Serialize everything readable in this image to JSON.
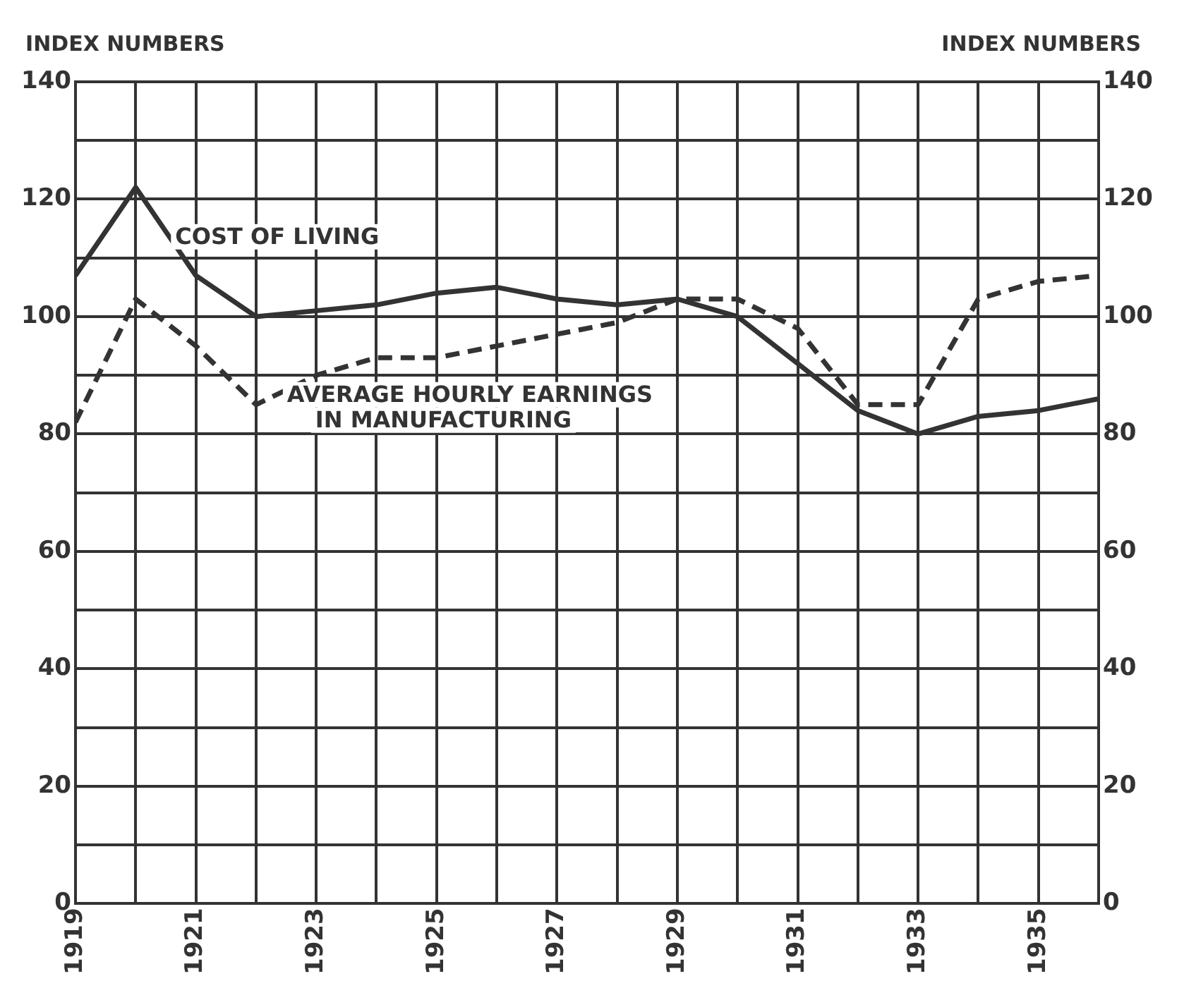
{
  "chart_data": {
    "type": "line",
    "ylabel": "INDEX NUMBERS",
    "y2label": "INDEX NUMBERS",
    "x": [
      1919,
      1920,
      1921,
      1922,
      1923,
      1924,
      1925,
      1926,
      1927,
      1928,
      1929,
      1930,
      1931,
      1932,
      1933,
      1934,
      1935,
      1936
    ],
    "series": [
      {
        "name": "COST OF LIVING",
        "color": "#333333",
        "line_style": "solid",
        "values": [
          107,
          122,
          107,
          100,
          101,
          102,
          104,
          105,
          103,
          102,
          103,
          100,
          92,
          84,
          80,
          83,
          84,
          86
        ]
      },
      {
        "name": "AVERAGE HOURLY EARNINGS IN MANUFACTURING",
        "color": "#333333",
        "line_style": "dashed",
        "values": [
          82,
          103,
          95,
          85,
          90,
          93,
          93,
          95,
          97,
          99,
          103,
          103,
          98,
          85,
          85,
          103,
          106,
          107
        ]
      }
    ],
    "xlim": [
      1919,
      1936
    ],
    "xticks": [
      1919,
      {
        "value": 1920,
        "label": null
      },
      1921,
      {
        "value": 1922,
        "label": null
      },
      1923,
      {
        "value": 1924,
        "label": null
      },
      1925,
      {
        "value": 1926,
        "label": null
      },
      1927,
      {
        "value": 1928,
        "label": null
      },
      1929,
      {
        "value": 1930,
        "label": null
      },
      1931,
      {
        "value": 1932,
        "label": null
      },
      1933,
      {
        "value": 1934,
        "label": null
      },
      1935,
      {
        "value": 1936,
        "label": null
      }
    ],
    "ylim": [
      0,
      140
    ],
    "yticks": [
      0,
      {
        "value": 10,
        "label": null
      },
      20,
      {
        "value": 30,
        "label": null
      },
      40,
      {
        "value": 50,
        "label": null
      },
      60,
      {
        "value": 70,
        "label": null
      },
      80,
      {
        "value": 90,
        "label": null
      },
      100,
      {
        "value": 110,
        "label": null
      },
      120,
      {
        "value": 130,
        "label": null
      },
      140
    ],
    "y2lim": [
      0,
      140
    ],
    "y2ticks": [
      0,
      {
        "value": 10,
        "label": null
      },
      20,
      {
        "value": 30,
        "label": null
      },
      40,
      {
        "value": 50,
        "label": null
      },
      60,
      {
        "value": 70,
        "label": null
      },
      80,
      {
        "value": 90,
        "label": null
      },
      100,
      {
        "value": 110,
        "label": null
      },
      120,
      {
        "value": 130,
        "label": null
      },
      140
    ],
    "grid": true,
    "legend": false,
    "marker": "none"
  }
}
